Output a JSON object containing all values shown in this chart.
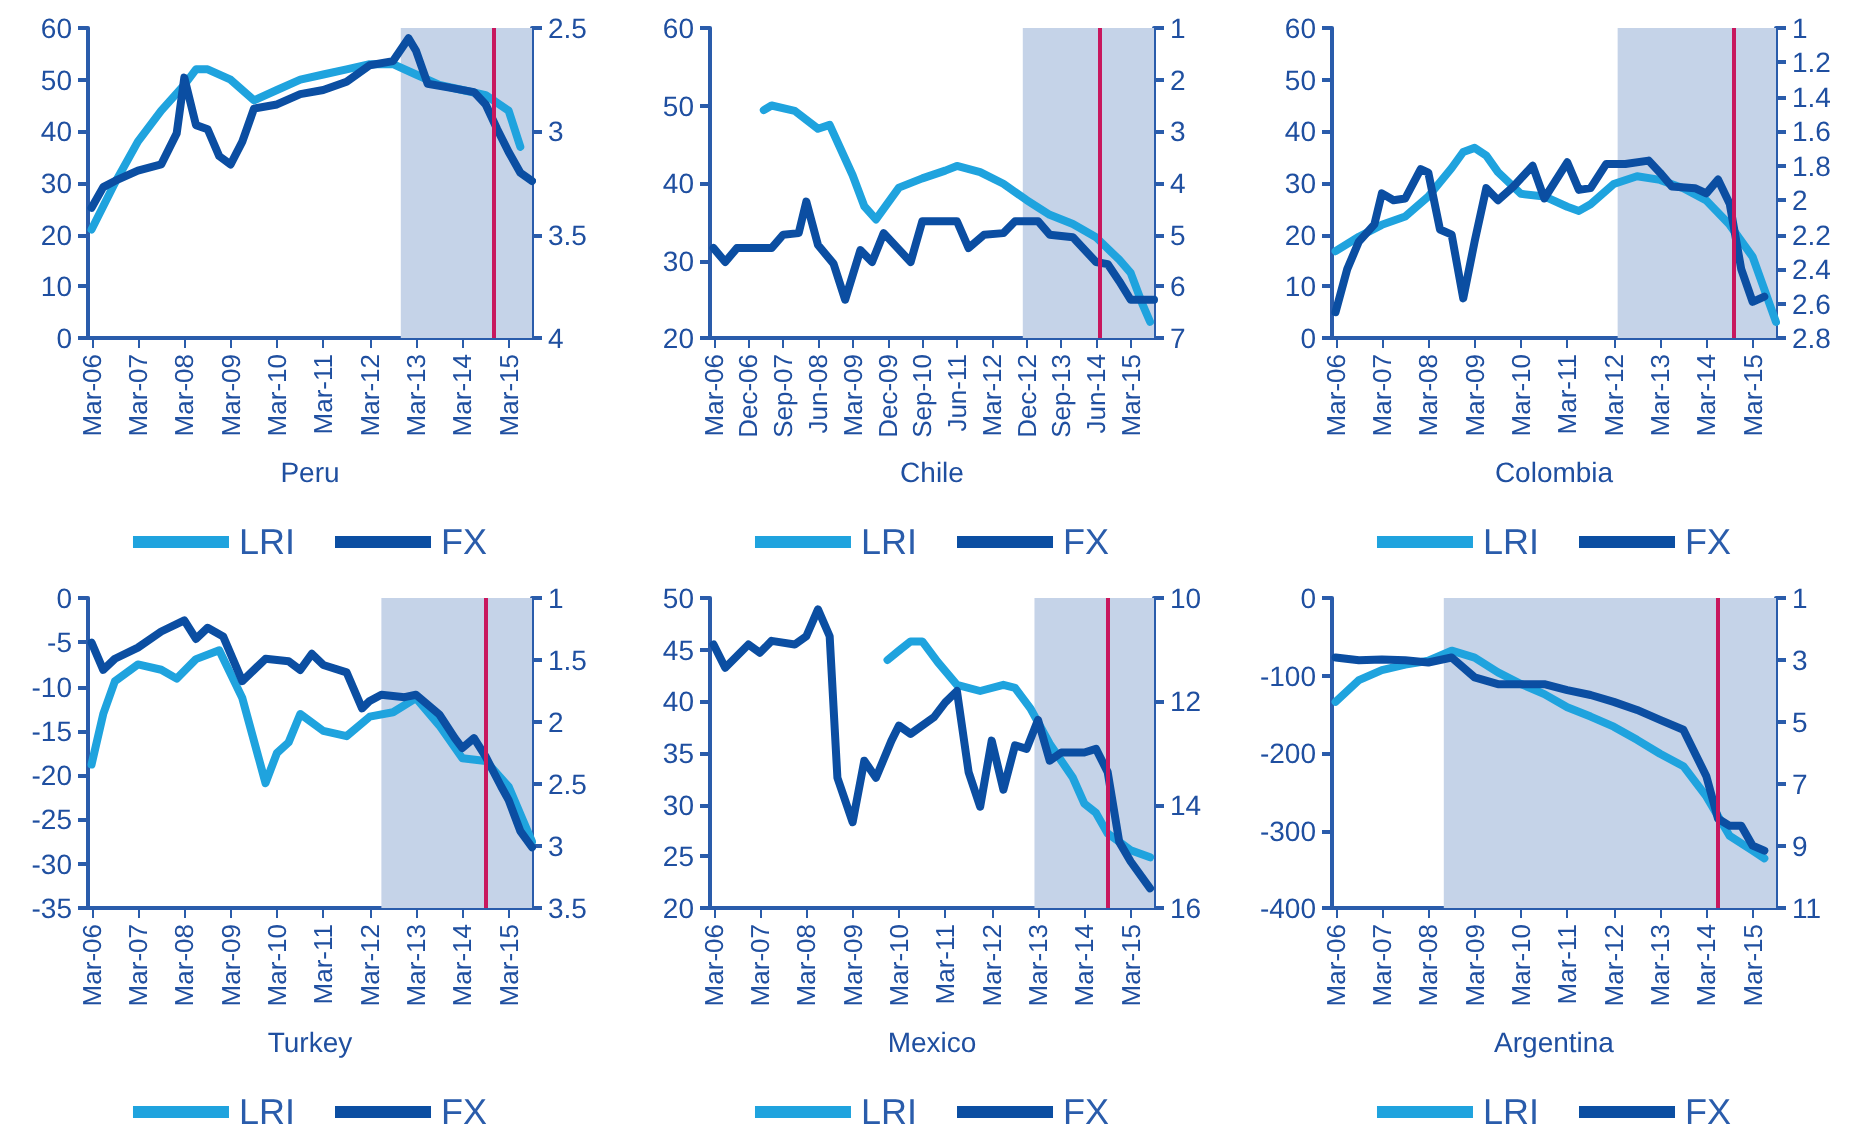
{
  "chart_data": [
    {
      "type": "line",
      "xlabel": "Peru",
      "legend": "bottom",
      "xlim": [
        "2006-02",
        "2015-09"
      ],
      "xticks": [
        {
          "value": "2006-03",
          "label": "Mar-06"
        },
        {
          "value": "2007-03",
          "label": "Mar-07"
        },
        {
          "value": "2008-03",
          "label": "Mar-08"
        },
        {
          "value": "2009-03",
          "label": "Mar-09"
        },
        {
          "value": "2010-03",
          "label": "Mar-10"
        },
        {
          "value": "2011-03",
          "label": "Mar-11"
        },
        {
          "value": "2012-03",
          "label": "Mar-12"
        },
        {
          "value": "2013-03",
          "label": "Mar-13"
        },
        {
          "value": "2014-03",
          "label": "Mar-14"
        },
        {
          "value": "2015-03",
          "label": "Mar-15"
        }
      ],
      "ylim": [
        0,
        60
      ],
      "yticks": [
        0,
        10,
        20,
        30,
        40,
        50,
        60
      ],
      "y2lim": [
        4,
        2.5
      ],
      "y2ticks": [
        2.5,
        3,
        3.5,
        4
      ],
      "bands": [
        {
          "axis": "x",
          "from": "2012-11",
          "to": "2015-09",
          "color": "#c5d3e8"
        }
      ],
      "ref_lines": [
        {
          "axis": "x",
          "value": "2014-11",
          "color": "#c8175d"
        }
      ],
      "series": [
        {
          "name": "LRI",
          "color": "#1fa3de",
          "x": [
            "2006-03",
            "2006-09",
            "2007-03",
            "2007-09",
            "2008-03",
            "2008-06",
            "2008-09",
            "2009-03",
            "2009-09",
            "2010-03",
            "2010-09",
            "2011-03",
            "2011-09",
            "2012-03",
            "2012-09",
            "2013-03",
            "2013-09",
            "2014-03",
            "2014-09",
            "2015-03",
            "2015-06"
          ],
          "values": [
            21,
            30,
            38,
            44,
            49,
            52,
            52,
            50,
            46,
            48,
            50,
            51,
            52,
            53,
            53,
            51,
            49,
            48,
            47,
            44,
            37
          ]
        },
        {
          "name": "FX",
          "color": "#0b4ea2",
          "axis": "y2",
          "x": [
            "2006-03",
            "2006-06",
            "2006-09",
            "2007-03",
            "2007-09",
            "2008-01",
            "2008-03",
            "2008-06",
            "2008-09",
            "2008-12",
            "2009-03",
            "2009-06",
            "2009-09",
            "2010-03",
            "2010-09",
            "2011-03",
            "2011-09",
            "2012-03",
            "2012-09",
            "2013-01",
            "2013-03",
            "2013-06",
            "2013-12",
            "2014-06",
            "2014-09",
            "2014-12",
            "2015-03",
            "2015-06",
            "2015-09"
          ],
          "values": [
            3.37,
            3.27,
            3.24,
            3.19,
            3.16,
            3.01,
            2.74,
            2.97,
            2.99,
            3.12,
            3.16,
            3.05,
            2.89,
            2.87,
            2.82,
            2.8,
            2.76,
            2.68,
            2.66,
            2.55,
            2.61,
            2.77,
            2.79,
            2.81,
            2.87,
            2.99,
            3.1,
            3.2,
            3.24
          ]
        }
      ]
    },
    {
      "type": "line",
      "xlabel": "Chile",
      "legend": "bottom",
      "xlim": [
        "2006-02",
        "2015-09"
      ],
      "xticks": [
        {
          "value": "2006-03",
          "label": "Mar-06"
        },
        {
          "value": "2006-12",
          "label": "Dec-06"
        },
        {
          "value": "2007-09",
          "label": "Sep-07"
        },
        {
          "value": "2008-06",
          "label": "Jun-08"
        },
        {
          "value": "2009-03",
          "label": "Mar-09"
        },
        {
          "value": "2009-12",
          "label": "Dec-09"
        },
        {
          "value": "2010-09",
          "label": "Sep-10"
        },
        {
          "value": "2011-06",
          "label": "Jun-11"
        },
        {
          "value": "2012-03",
          "label": "Mar-12"
        },
        {
          "value": "2012-12",
          "label": "Dec-12"
        },
        {
          "value": "2013-09",
          "label": "Sep-13"
        },
        {
          "value": "2014-06",
          "label": "Jun-14"
        },
        {
          "value": "2015-03",
          "label": "Mar-15"
        }
      ],
      "ylim": [
        20,
        60
      ],
      "yticks": [
        20,
        30,
        40,
        50,
        60
      ],
      "y2lim": [
        7,
        1
      ],
      "y2ticks": [
        1,
        2,
        3,
        4,
        5,
        6,
        7
      ],
      "bands": [
        {
          "axis": "x",
          "from": "2012-11",
          "to": "2015-09",
          "color": "#c5d3e8"
        }
      ],
      "ref_lines": [
        {
          "axis": "x",
          "value": "2014-07",
          "color": "#c8175d"
        }
      ],
      "series": [
        {
          "name": "LRI",
          "color": "#1fa3de",
          "x": [
            "2007-04",
            "2007-06",
            "2007-12",
            "2008-06",
            "2008-09",
            "2009-03",
            "2009-06",
            "2009-09",
            "2010-03",
            "2010-09",
            "2011-03",
            "2011-06",
            "2011-12",
            "2012-06",
            "2012-12",
            "2013-06",
            "2013-12",
            "2014-06",
            "2014-12",
            "2015-03",
            "2015-06",
            "2015-08"
          ],
          "values": [
            49.4,
            50,
            49.3,
            47,
            47.5,
            41,
            37,
            35.3,
            39.4,
            40.6,
            41.6,
            42.2,
            41.4,
            39.9,
            37.8,
            35.9,
            34.7,
            33,
            30.1,
            28.4,
            24.4,
            22.1
          ]
        },
        {
          "name": "FX",
          "color": "#0b4ea2",
          "axis": "y2",
          "x": [
            "2006-03",
            "2006-06",
            "2006-09",
            "2007-06",
            "2007-09",
            "2008-01",
            "2008-03",
            "2008-06",
            "2008-10",
            "2009-01",
            "2009-05",
            "2009-08",
            "2009-11",
            "2010-06",
            "2010-09",
            "2011-06",
            "2011-09",
            "2012-01",
            "2012-06",
            "2012-09",
            "2013-03",
            "2013-06",
            "2013-12",
            "2014-06",
            "2014-09",
            "2014-12",
            "2015-03",
            "2015-09"
          ],
          "values": [
            5.26,
            5.53,
            5.26,
            5.26,
            5.0,
            4.97,
            4.36,
            5.2,
            5.56,
            6.26,
            5.3,
            5.53,
            4.97,
            5.53,
            4.74,
            4.74,
            5.26,
            5.0,
            4.97,
            4.74,
            4.74,
            5.0,
            5.05,
            5.53,
            5.57,
            5.9,
            6.26,
            6.26
          ]
        }
      ]
    },
    {
      "type": "line",
      "xlabel": "Colombia",
      "legend": "bottom",
      "xlim": [
        "2006-02",
        "2015-09"
      ],
      "xticks": [
        {
          "value": "2006-03",
          "label": "Mar-06"
        },
        {
          "value": "2007-03",
          "label": "Mar-07"
        },
        {
          "value": "2008-03",
          "label": "Mar-08"
        },
        {
          "value": "2009-03",
          "label": "Mar-09"
        },
        {
          "value": "2010-03",
          "label": "Mar-10"
        },
        {
          "value": "2011-03",
          "label": "Mar-11"
        },
        {
          "value": "2012-03",
          "label": "Mar-12"
        },
        {
          "value": "2013-03",
          "label": "Mar-13"
        },
        {
          "value": "2014-03",
          "label": "Mar-14"
        },
        {
          "value": "2015-03",
          "label": "Mar-15"
        }
      ],
      "ylim": [
        0,
        60
      ],
      "yticks": [
        0,
        10,
        20,
        30,
        40,
        50,
        60
      ],
      "y2lim": [
        2.8,
        1
      ],
      "y2ticks": [
        1,
        1.2,
        1.4,
        1.6,
        1.8,
        2,
        2.2,
        2.4,
        2.6,
        2.8
      ],
      "bands": [
        {
          "axis": "x",
          "from": "2012-04",
          "to": "2015-09",
          "color": "#c5d3e8"
        }
      ],
      "ref_lines": [
        {
          "axis": "x",
          "value": "2014-10",
          "color": "#c8175d"
        }
      ],
      "series": [
        {
          "name": "LRI",
          "color": "#1fa3de",
          "x": [
            "2006-03",
            "2006-09",
            "2007-03",
            "2007-09",
            "2008-03",
            "2008-09",
            "2008-12",
            "2009-03",
            "2009-06",
            "2009-09",
            "2010-03",
            "2010-09",
            "2011-03",
            "2011-06",
            "2011-09",
            "2012-03",
            "2012-09",
            "2013-03",
            "2013-09",
            "2014-03",
            "2014-09",
            "2015-03",
            "2015-06",
            "2015-09"
          ],
          "values": [
            16.8,
            19.6,
            21.9,
            23.5,
            27.4,
            32.9,
            36,
            36.8,
            35.3,
            32.1,
            27.9,
            27.4,
            25.4,
            24.6,
            25.9,
            29.8,
            31.3,
            30.6,
            29,
            26.6,
            21.9,
            15.7,
            9.4,
            3.1
          ]
        },
        {
          "name": "FX",
          "color": "#0b4ea2",
          "axis": "y2",
          "x": [
            "2006-03",
            "2006-06",
            "2006-09",
            "2007-01",
            "2007-03",
            "2007-06",
            "2007-09",
            "2008-01",
            "2008-03",
            "2008-06",
            "2008-09",
            "2008-12",
            "2009-03",
            "2009-06",
            "2009-09",
            "2010-01",
            "2010-06",
            "2010-09",
            "2011-03",
            "2011-06",
            "2011-09",
            "2012-01",
            "2012-06",
            "2012-12",
            "2013-03",
            "2013-06",
            "2013-12",
            "2014-03",
            "2014-06",
            "2014-09",
            "2014-12",
            "2015-03",
            "2015-06"
          ],
          "values": [
            2.65,
            2.4,
            2.24,
            2.14,
            1.96,
            2.0,
            1.99,
            1.82,
            1.84,
            2.17,
            2.2,
            2.57,
            2.24,
            1.93,
            2.0,
            1.92,
            1.8,
            1.99,
            1.78,
            1.94,
            1.93,
            1.79,
            1.79,
            1.77,
            1.84,
            1.92,
            1.93,
            1.96,
            1.88,
            2.02,
            2.4,
            2.59,
            2.56
          ]
        }
      ]
    },
    {
      "type": "line",
      "xlabel": "Turkey",
      "legend": "bottom",
      "xlim": [
        "2006-02",
        "2015-09"
      ],
      "xticks": [
        {
          "value": "2006-03",
          "label": "Mar-06"
        },
        {
          "value": "2007-03",
          "label": "Mar-07"
        },
        {
          "value": "2008-03",
          "label": "Mar-08"
        },
        {
          "value": "2009-03",
          "label": "Mar-09"
        },
        {
          "value": "2010-03",
          "label": "Mar-10"
        },
        {
          "value": "2011-03",
          "label": "Mar-11"
        },
        {
          "value": "2012-03",
          "label": "Mar-12"
        },
        {
          "value": "2013-03",
          "label": "Mar-13"
        },
        {
          "value": "2014-03",
          "label": "Mar-14"
        },
        {
          "value": "2015-03",
          "label": "Mar-15"
        }
      ],
      "ylim": [
        -35,
        0
      ],
      "yticks": [
        -35,
        -30,
        -25,
        -20,
        -15,
        -10,
        -5,
        0
      ],
      "y2lim": [
        3.5,
        1
      ],
      "y2ticks": [
        1,
        1.5,
        2,
        2.5,
        3,
        3.5
      ],
      "bands": [
        {
          "axis": "x",
          "from": "2012-06",
          "to": "2015-09",
          "color": "#c5d3e8"
        }
      ],
      "ref_lines": [
        {
          "axis": "x",
          "value": "2014-09",
          "color": "#c8175d"
        }
      ],
      "series": [
        {
          "name": "LRI",
          "color": "#1fa3de",
          "x": [
            "2006-03",
            "2006-06",
            "2006-09",
            "2007-03",
            "2007-09",
            "2008-01",
            "2008-06",
            "2008-12",
            "2009-06",
            "2009-12",
            "2010-03",
            "2010-06",
            "2010-09",
            "2011-03",
            "2011-09",
            "2012-03",
            "2012-09",
            "2013-03",
            "2013-09",
            "2014-03",
            "2014-09",
            "2015-03",
            "2015-06",
            "2015-09"
          ],
          "values": [
            -18.8,
            -13.1,
            -9.4,
            -7.5,
            -8.1,
            -9.1,
            -6.9,
            -5.9,
            -11.3,
            -20.9,
            -17.5,
            -16.3,
            -13.1,
            -15,
            -15.6,
            -13.4,
            -12.9,
            -11.3,
            -14.4,
            -18.1,
            -18.4,
            -21.3,
            -24.4,
            -27.5
          ]
        },
        {
          "name": "FX",
          "color": "#0b4ea2",
          "axis": "y2",
          "x": [
            "2006-03",
            "2006-06",
            "2006-09",
            "2007-03",
            "2007-09",
            "2008-03",
            "2008-06",
            "2008-09",
            "2009-01",
            "2009-06",
            "2009-12",
            "2010-06",
            "2010-09",
            "2010-12",
            "2011-03",
            "2011-09",
            "2012-01",
            "2012-03",
            "2012-06",
            "2012-12",
            "2013-03",
            "2013-09",
            "2014-01",
            "2014-03",
            "2014-06",
            "2014-09",
            "2015-01",
            "2015-03",
            "2015-06",
            "2015-09"
          ],
          "values": [
            1.36,
            1.58,
            1.49,
            1.4,
            1.27,
            1.18,
            1.33,
            1.24,
            1.31,
            1.67,
            1.49,
            1.51,
            1.58,
            1.45,
            1.54,
            1.6,
            1.89,
            1.83,
            1.78,
            1.8,
            1.78,
            1.94,
            2.13,
            2.21,
            2.13,
            2.28,
            2.52,
            2.63,
            2.88,
            3.01
          ]
        }
      ]
    },
    {
      "type": "line",
      "xlabel": "Mexico",
      "legend": "bottom",
      "xlim": [
        "2006-02",
        "2015-09"
      ],
      "xticks": [
        {
          "value": "2006-03",
          "label": "Mar-06"
        },
        {
          "value": "2007-03",
          "label": "Mar-07"
        },
        {
          "value": "2008-03",
          "label": "Mar-08"
        },
        {
          "value": "2009-03",
          "label": "Mar-09"
        },
        {
          "value": "2010-03",
          "label": "Mar-10"
        },
        {
          "value": "2011-03",
          "label": "Mar-11"
        },
        {
          "value": "2012-03",
          "label": "Mar-12"
        },
        {
          "value": "2013-03",
          "label": "Mar-13"
        },
        {
          "value": "2014-03",
          "label": "Mar-14"
        },
        {
          "value": "2015-03",
          "label": "Mar-15"
        }
      ],
      "ylim": [
        20,
        50
      ],
      "yticks": [
        20,
        25,
        30,
        35,
        40,
        45,
        50
      ],
      "y2lim": [
        16,
        10
      ],
      "y2ticks": [
        10,
        12,
        14,
        16
      ],
      "bands": [
        {
          "axis": "x",
          "from": "2013-02",
          "to": "2015-09",
          "color": "#c5d3e8"
        }
      ],
      "ref_lines": [
        {
          "axis": "x",
          "value": "2014-09",
          "color": "#c8175d"
        }
      ],
      "series": [
        {
          "name": "LRI",
          "color": "#1fa3de",
          "x": [
            "2009-12",
            "2010-03",
            "2010-06",
            "2010-09",
            "2011-01",
            "2011-06",
            "2011-12",
            "2012-06",
            "2012-09",
            "2013-01",
            "2013-06",
            "2013-12",
            "2014-03",
            "2014-06",
            "2014-09",
            "2014-12",
            "2015-03",
            "2015-08"
          ],
          "values": [
            44,
            44.9,
            45.8,
            45.8,
            43.8,
            41.6,
            41,
            41.6,
            41.3,
            39.3,
            35.9,
            32.6,
            30.1,
            29.2,
            27.2,
            26.4,
            25.6,
            24.9
          ]
        },
        {
          "name": "FX",
          "color": "#0b4ea2",
          "axis": "y2",
          "x": [
            "2006-03",
            "2006-06",
            "2006-12",
            "2007-03",
            "2007-06",
            "2007-12",
            "2008-03",
            "2008-06",
            "2008-09",
            "2008-11",
            "2009-03",
            "2009-06",
            "2009-09",
            "2010-01",
            "2010-03",
            "2010-06",
            "2010-12",
            "2011-03",
            "2011-06",
            "2011-09",
            "2011-12",
            "2012-03",
            "2012-06",
            "2012-09",
            "2012-12",
            "2013-03",
            "2013-06",
            "2013-09",
            "2014-03",
            "2014-06",
            "2014-09",
            "2014-12",
            "2015-03",
            "2015-08"
          ],
          "values": [
            10.9,
            11.35,
            10.9,
            11.06,
            10.83,
            10.9,
            10.74,
            10.22,
            10.74,
            13.48,
            14.34,
            13.15,
            13.48,
            12.76,
            12.47,
            12.63,
            12.31,
            12.02,
            11.8,
            13.37,
            14.04,
            12.76,
            13.71,
            12.85,
            12.92,
            12.36,
            13.15,
            12.99,
            12.99,
            12.92,
            13.37,
            14.72,
            15.1,
            15.62
          ]
        }
      ]
    },
    {
      "type": "line",
      "xlabel": "Argentina",
      "legend": "bottom",
      "xlim": [
        "2006-02",
        "2015-09"
      ],
      "xticks": [
        {
          "value": "2006-03",
          "label": "Mar-06"
        },
        {
          "value": "2007-03",
          "label": "Mar-07"
        },
        {
          "value": "2008-03",
          "label": "Mar-08"
        },
        {
          "value": "2009-03",
          "label": "Mar-09"
        },
        {
          "value": "2010-03",
          "label": "Mar-10"
        },
        {
          "value": "2011-03",
          "label": "Mar-11"
        },
        {
          "value": "2012-03",
          "label": "Mar-12"
        },
        {
          "value": "2013-03",
          "label": "Mar-13"
        },
        {
          "value": "2014-03",
          "label": "Mar-14"
        },
        {
          "value": "2015-03",
          "label": "Mar-15"
        }
      ],
      "ylim": [
        -400,
        0
      ],
      "yticks": [
        -400,
        -300,
        -200,
        -100,
        0
      ],
      "y2lim": [
        11,
        1
      ],
      "y2ticks": [
        1,
        3,
        5,
        7,
        9,
        11
      ],
      "bands": [
        {
          "axis": "x",
          "from": "2008-07",
          "to": "2015-09",
          "color": "#c5d3e8"
        }
      ],
      "ref_lines": [
        {
          "axis": "x",
          "value": "2014-06",
          "color": "#c8175d"
        }
      ],
      "series": [
        {
          "name": "LRI",
          "color": "#1fa3de",
          "x": [
            "2006-03",
            "2006-09",
            "2007-03",
            "2007-09",
            "2008-03",
            "2008-09",
            "2009-03",
            "2009-09",
            "2010-03",
            "2010-09",
            "2011-03",
            "2011-09",
            "2012-03",
            "2012-09",
            "2013-03",
            "2013-09",
            "2014-03",
            "2014-09",
            "2015-03",
            "2015-06"
          ],
          "values": [
            -134,
            -106,
            -93,
            -86,
            -81,
            -68,
            -77,
            -96,
            -111,
            -124,
            -141,
            -153,
            -166,
            -183,
            -201,
            -217,
            -256,
            -307,
            -326,
            -336
          ]
        },
        {
          "name": "FX",
          "color": "#0b4ea2",
          "axis": "y2",
          "x": [
            "2006-03",
            "2006-09",
            "2007-03",
            "2007-09",
            "2008-03",
            "2008-09",
            "2009-03",
            "2009-09",
            "2010-03",
            "2010-09",
            "2011-03",
            "2011-09",
            "2012-03",
            "2012-09",
            "2013-03",
            "2013-09",
            "2014-03",
            "2014-06",
            "2014-09",
            "2014-12",
            "2015-03",
            "2015-06"
          ],
          "values": [
            2.92,
            3.01,
            2.98,
            3.01,
            3.08,
            2.92,
            3.56,
            3.78,
            3.78,
            3.78,
            3.97,
            4.13,
            4.35,
            4.61,
            4.93,
            5.25,
            6.75,
            8.12,
            8.35,
            8.35,
            8.99,
            9.15
          ]
        }
      ]
    }
  ]
}
